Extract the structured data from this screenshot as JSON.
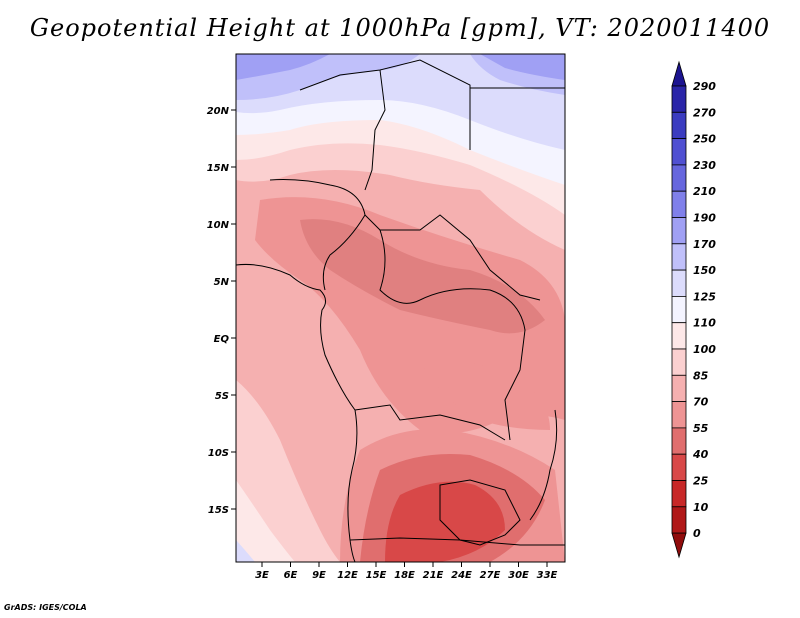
{
  "title": "Geopotential Height at 1000hPa [gpm], VT: 2020011400",
  "credit": "GrADS: IGES/COLA",
  "map": {
    "lat_labels": [
      "20N",
      "15N",
      "10N",
      "5N",
      "EQ",
      "5S",
      "10S",
      "15S"
    ],
    "lon_labels": [
      "3E",
      "6E",
      "9E",
      "12E",
      "15E",
      "18E",
      "21E",
      "24E",
      "27E",
      "30E",
      "33E"
    ]
  },
  "colorbar": {
    "levels": [
      "290",
      "270",
      "250",
      "230",
      "210",
      "190",
      "170",
      "150",
      "125",
      "110",
      "100",
      "85",
      "70",
      "55",
      "40",
      "25",
      "10",
      "0"
    ],
    "colors": [
      "#1c1490",
      "#2a25a8",
      "#3b3cc0",
      "#5050d2",
      "#6666de",
      "#8080ea",
      "#a0a0f4",
      "#c0c0fa",
      "#dcdcfc",
      "#f4f4ff",
      "#fde8e8",
      "#fbd0d0",
      "#f5b0b0",
      "#ee9494",
      "#e06e6e",
      "#d84848",
      "#c82828",
      "#b01818",
      "#900c0c"
    ]
  }
}
